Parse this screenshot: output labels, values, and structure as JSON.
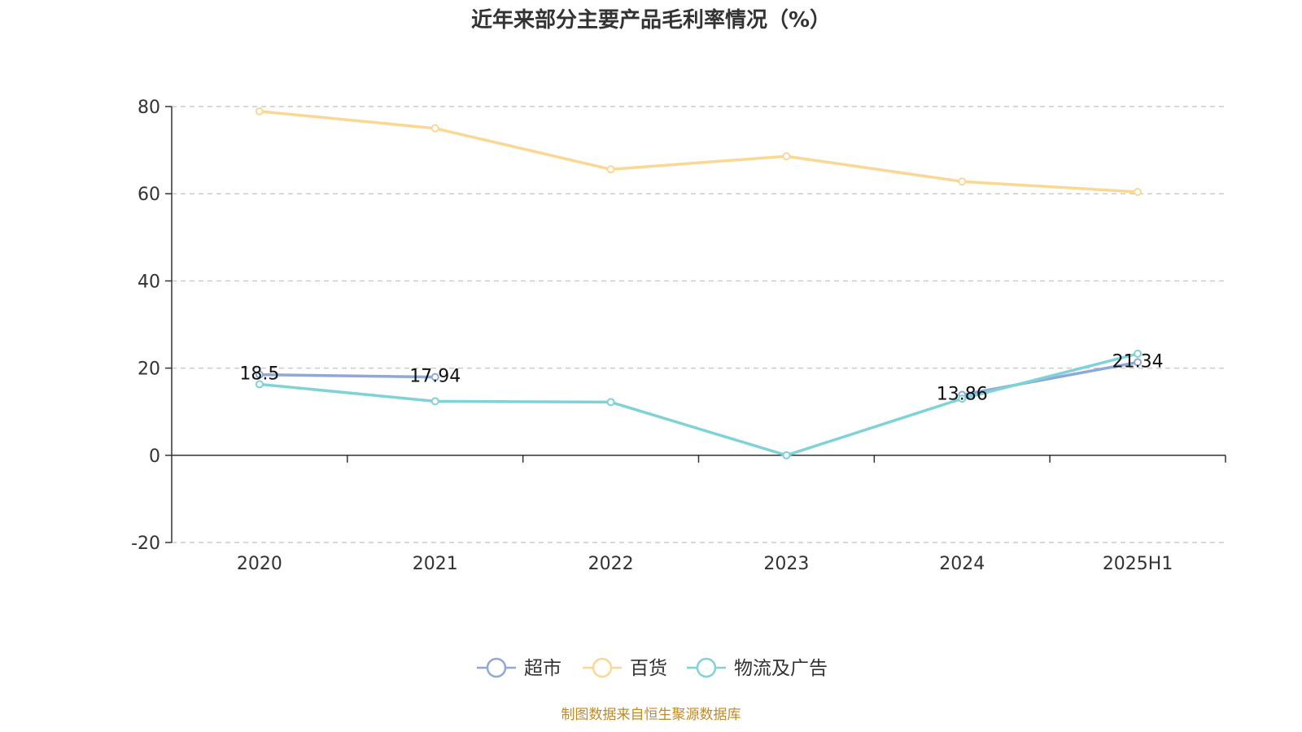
{
  "chart_data": {
    "type": "line",
    "title": "近年来部分主要产品毛利率情况（%）",
    "categories": [
      "2020",
      "2021",
      "2022",
      "2023",
      "2024",
      "2025H1"
    ],
    "ylim": [
      -20,
      80
    ],
    "yticks": [
      -20,
      0,
      20,
      40,
      60,
      80
    ],
    "grid": true,
    "legend_position": "bottom",
    "series": [
      {
        "name": "超市",
        "color": "#8fa8d8",
        "values": [
          18.5,
          17.94,
          null,
          null,
          13.86,
          21.34
        ],
        "labels": [
          "18.5",
          "17.94",
          "",
          "",
          "13.86",
          "21.34"
        ]
      },
      {
        "name": "百货",
        "color": "#fad894",
        "values": [
          78.9,
          75.0,
          65.6,
          68.6,
          62.8,
          60.4
        ]
      },
      {
        "name": "物流及广告",
        "color": "#7fd3d6",
        "values": [
          16.3,
          12.4,
          12.2,
          0.0,
          13.0,
          23.3
        ]
      }
    ]
  },
  "source": "制图数据来自恒生聚源数据库"
}
